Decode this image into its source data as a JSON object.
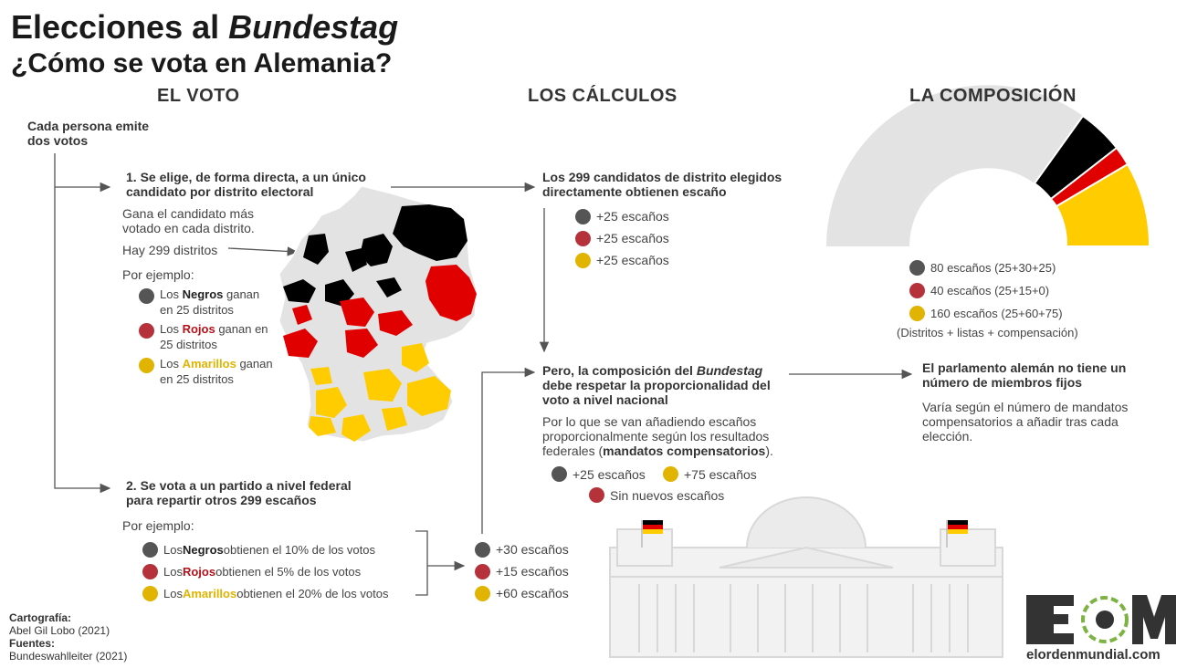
{
  "header": {
    "title_prefix": "Elecciones al ",
    "title_em": "Bundestag",
    "subtitle": "¿Cómo se vota en Alemania?"
  },
  "columns": {
    "voto": "EL VOTO",
    "calculos": "LOS CÁLCULOS",
    "composicion": "LA COMPOSICIÓN"
  },
  "voto": {
    "intro_1": "Cada persona emite",
    "intro_2": "dos votos",
    "step1_title_1": "1. Se elige, de forma directa, a un único",
    "step1_title_2": "candidato por distrito electoral",
    "step1_desc_1": "Gana el candidato más",
    "step1_desc_2": "votado en cada distrito.",
    "step1_districts": "Hay 299 distritos",
    "example_label": "Por ejemplo:",
    "ex1": [
      {
        "pre": "Los ",
        "party": "Negros",
        "post": " ganan",
        "line2": "en 25 distritos",
        "color": "#555555"
      },
      {
        "pre": "Los ",
        "party": "Rojos",
        "post": " ganan en",
        "line2": "25 distritos",
        "color": "#b5323a"
      },
      {
        "pre": "Los ",
        "party": "Amarillos",
        "post": " ganan",
        "line2": "en 25 distritos",
        "color": "#e0b400"
      }
    ],
    "step2_title_1": "2. Se vota a un partido a nivel federal",
    "step2_title_2": "para repartir otros 299 escaños",
    "example2_label": "Por ejemplo:",
    "ex2": [
      {
        "pre": "Los ",
        "party": "Negros",
        "post": " obtienen el 10% de los votos",
        "color": "#555555"
      },
      {
        "pre": "Los ",
        "party": "Rojos",
        "post": " obtienen el 5% de los votos",
        "color": "#b5323a"
      },
      {
        "pre": "Los ",
        "party": "Amarillos",
        "post": " obtienen el 20% de los votos",
        "color": "#e0b400"
      }
    ],
    "list_results": [
      "+30 escaños",
      "+15 escaños",
      "+60 escaños"
    ]
  },
  "calculos": {
    "direct_title_1": "Los 299 candidatos de distrito elegidos",
    "direct_title_2": "directamente obtienen escaño",
    "direct_results": [
      "+25 escaños",
      "+25 escaños",
      "+25 escaños"
    ],
    "prop_title_1_pre": "Pero, la composición del ",
    "prop_title_1_em": "Bundestag",
    "prop_title_2": "debe respetar la proporcionalidad del",
    "prop_title_3": "voto a nivel nacional",
    "prop_desc_1": "Por lo que se van añadiendo escaños",
    "prop_desc_2": "proporcionalmente según los resultados",
    "prop_desc_3_pre": "federales (",
    "prop_desc_3_bold": "mandatos compensatorios",
    "prop_desc_3_post": ").",
    "comp_black": "+25 escaños",
    "comp_yellow": "+75 escaños",
    "comp_red": "Sin nuevos escaños"
  },
  "composicion": {
    "legend": [
      {
        "label": "80 escaños (25+30+25)",
        "color": "#555555"
      },
      {
        "label": "40 escaños (25+15+0)",
        "color": "#b5323a"
      },
      {
        "label": "160 escaños (25+60+75)",
        "color": "#e0b400"
      }
    ],
    "legend_note": "(Distritos + listas + compensación)",
    "note_title_1": "El parlamento alemán no tiene un",
    "note_title_2": "número de miembros fijos",
    "note_desc_1": "Varía según el número de mandatos",
    "note_desc_2": "compensatorios a añadir tras cada",
    "note_desc_3": "elección."
  },
  "credits": {
    "carto_label": "Cartografía:",
    "carto_value": "Abel Gil Lobo (2021)",
    "sources_label": "Fuentes:",
    "sources_value": "Bundeswahlleiter (2021)"
  },
  "brand": {
    "logo_text": "EOM",
    "url": "elordenmundial.com"
  },
  "colors": {
    "black": "#000000",
    "red": "#e00000",
    "yellow": "#ffcc00",
    "grey": "#e3e3e3",
    "dark_dot": "#555555",
    "red_dot": "#b5323a",
    "yellow_dot": "#e0b400"
  }
}
